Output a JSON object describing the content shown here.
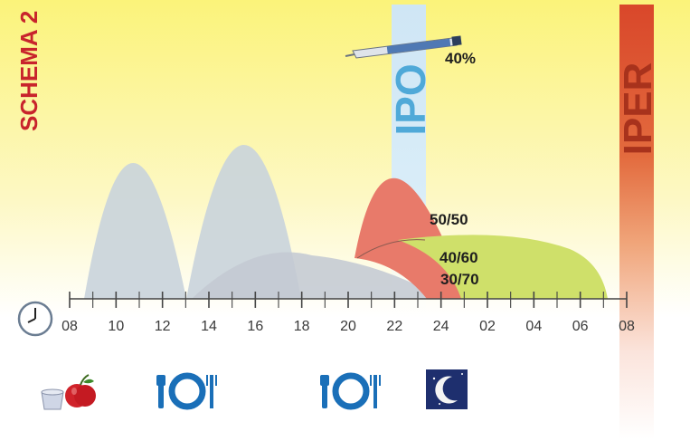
{
  "schema_label": "SCHEMA 2",
  "zone_low_label": "IPO",
  "zone_high_label": "IPER",
  "insulin_percent_label": "40%",
  "ratio_labels": [
    "50/50",
    "40/60",
    "30/70"
  ],
  "time_ticks": [
    "08",
    "10",
    "12",
    "14",
    "16",
    "18",
    "20",
    "22",
    "24",
    "02",
    "04",
    "06",
    "08"
  ],
  "colors": {
    "title_red": "#c8242c",
    "ipo_blue": "#4fa9d8",
    "iper_red": "#d9472a",
    "curve_grey": "#c9d3dc",
    "curve_red": "#e87a6a",
    "curve_green": "#cfe06a",
    "icon_blue": "#1a6fb8",
    "moon_navy": "#1e2f6e"
  },
  "icons": [
    "clock-icon",
    "cup-icon",
    "apple-icon",
    "plate-fork-knife-icon",
    "plate-fork-knife-icon",
    "moon-icon",
    "insulin-pen-icon"
  ]
}
